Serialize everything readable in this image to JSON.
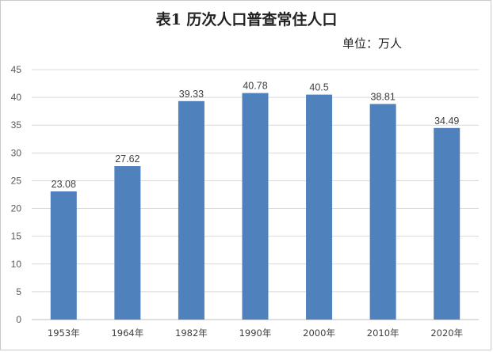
{
  "chart_data": {
    "type": "bar",
    "title": "表1 历次人口普查常住人口",
    "unit_note": "单位：万人",
    "categories": [
      "1953年",
      "1964年",
      "1982年",
      "1990年",
      "2000年",
      "2010年",
      "2020年"
    ],
    "values": [
      23.08,
      27.62,
      39.33,
      40.78,
      40.5,
      38.81,
      34.49
    ],
    "value_labels": [
      "23.08",
      "27.62",
      "39.33",
      "40.78",
      "40.5",
      "38.81",
      "34.49"
    ],
    "ylim": [
      0,
      45
    ],
    "yticks": [
      0,
      5,
      10,
      15,
      20,
      25,
      30,
      35,
      40,
      45
    ],
    "grid": true,
    "legend": "none",
    "bar_color": "#4f81bd",
    "grid_color": "#d9d9d9"
  }
}
